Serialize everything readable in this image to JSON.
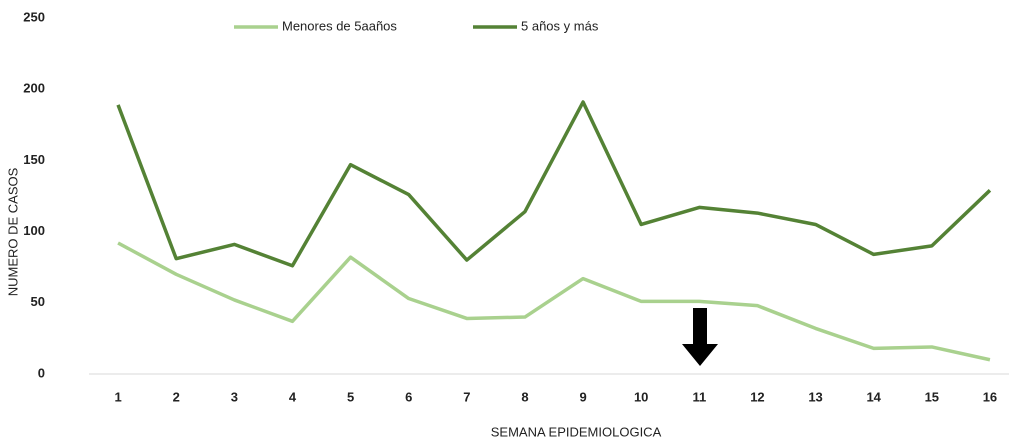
{
  "chart_data": {
    "type": "line",
    "categories": [
      "1",
      "2",
      "3",
      "4",
      "5",
      "6",
      "7",
      "8",
      "9",
      "10",
      "11",
      "12",
      "13",
      "14",
      "15",
      "16"
    ],
    "series": [
      {
        "name": "Menores de 5aaños",
        "color": "#a9d18e",
        "values": [
          92,
          70,
          52,
          37,
          82,
          53,
          39,
          40,
          67,
          51,
          51,
          48,
          32,
          18,
          19,
          10
        ]
      },
      {
        "name": "5 años y más",
        "color": "#548235",
        "values": [
          189,
          81,
          91,
          76,
          147,
          126,
          80,
          114,
          191,
          105,
          117,
          113,
          105,
          84,
          90,
          129
        ]
      }
    ],
    "ylim": [
      0,
      250
    ],
    "yticks": [
      0,
      50,
      100,
      150,
      200,
      250
    ],
    "xlabel": "SEMANA EPIDEMIOLOGICA",
    "ylabel": "NUMERO DE CASOS",
    "legend": "top",
    "grid": false
  }
}
